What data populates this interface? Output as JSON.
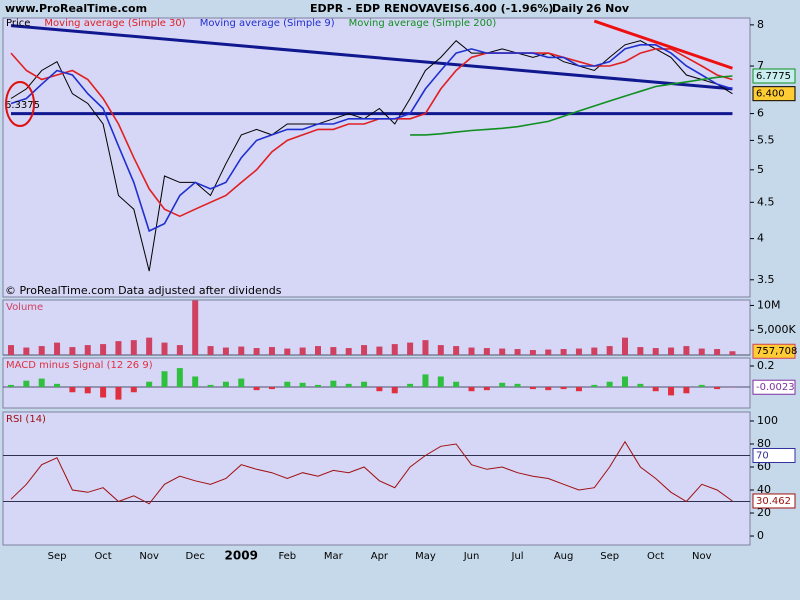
{
  "header": {
    "site": "www.ProRealTime.com",
    "symbol": "EDPR - EDP RENOVAVEIS",
    "quote": "6.400 (-1.96%)",
    "period": "Daily",
    "date": "26 Nov"
  },
  "footnote": "© ProRealTime.com Data adjusted after dividends",
  "chart_data": [
    {
      "type": "line",
      "log": true,
      "ylim": [
        3.31,
        8.18
      ],
      "yticks": [
        3.5,
        4,
        4.5,
        5,
        5.5,
        6,
        7,
        8
      ],
      "series": [
        {
          "name": "Price",
          "color": "#000000",
          "values": [
            6.3,
            6.5,
            6.9,
            7.1,
            6.4,
            6.2,
            5.8,
            4.6,
            4.4,
            3.6,
            4.9,
            4.8,
            4.8,
            4.6,
            5.1,
            5.6,
            5.7,
            5.6,
            5.8,
            5.8,
            5.8,
            5.9,
            6.0,
            5.9,
            6.1,
            5.8,
            6.3,
            6.9,
            7.2,
            7.6,
            7.3,
            7.3,
            7.4,
            7.3,
            7.2,
            7.3,
            7.1,
            7.0,
            6.9,
            7.2,
            7.5,
            7.6,
            7.4,
            7.2,
            6.8,
            6.7,
            6.6,
            6.4
          ],
          "value_labels": [
            null,
            null,
            null,
            null,
            null,
            null,
            null,
            null,
            null,
            null,
            null,
            null,
            null,
            null,
            null,
            null,
            null,
            null,
            null,
            null,
            null,
            null,
            null,
            null,
            null,
            null,
            null,
            null,
            null,
            null,
            null,
            null,
            null,
            null,
            null,
            null,
            null,
            null,
            null,
            null,
            null,
            null,
            null,
            null,
            null,
            null,
            null,
            "6.400"
          ],
          "box_fill": "#ffcc33"
        },
        {
          "name": "Moving average (Simple 30)",
          "color": "#e02020",
          "values": [
            7.3,
            6.9,
            6.7,
            6.8,
            6.9,
            6.7,
            6.3,
            5.8,
            5.2,
            4.7,
            4.4,
            4.3,
            4.4,
            4.5,
            4.6,
            4.8,
            5.0,
            5.3,
            5.5,
            5.6,
            5.7,
            5.7,
            5.8,
            5.8,
            5.9,
            5.9,
            5.9,
            6.0,
            6.5,
            6.9,
            7.2,
            7.3,
            7.3,
            7.3,
            7.3,
            7.3,
            7.2,
            7.1,
            7.0,
            7.0,
            7.1,
            7.3,
            7.4,
            7.4,
            7.2,
            7.0,
            6.8,
            6.7
          ]
        },
        {
          "name": "Moving average (Simple 9)",
          "color": "#2030d0",
          "values": [
            6.2,
            6.3,
            6.6,
            6.9,
            6.8,
            6.4,
            6.1,
            5.4,
            4.8,
            4.1,
            4.2,
            4.6,
            4.8,
            4.7,
            4.8,
            5.2,
            5.5,
            5.6,
            5.7,
            5.7,
            5.8,
            5.8,
            5.9,
            5.9,
            5.9,
            5.9,
            6.0,
            6.5,
            6.9,
            7.3,
            7.4,
            7.3,
            7.3,
            7.3,
            7.3,
            7.2,
            7.2,
            7.0,
            7.0,
            7.1,
            7.4,
            7.5,
            7.5,
            7.3,
            7.0,
            6.8,
            6.6,
            6.5
          ]
        },
        {
          "name": "Moving average (Simple 200)",
          "color": "#109020",
          "label_last": true,
          "box_fill": "#c8eef0",
          "values": [
            null,
            null,
            null,
            null,
            null,
            null,
            null,
            null,
            null,
            null,
            null,
            null,
            null,
            null,
            null,
            null,
            null,
            null,
            null,
            null,
            null,
            null,
            null,
            null,
            null,
            null,
            5.6,
            5.6,
            5.62,
            5.65,
            5.68,
            5.7,
            5.72,
            5.75,
            5.8,
            5.85,
            5.95,
            6.05,
            6.15,
            6.25,
            6.35,
            6.45,
            6.55,
            6.6,
            6.65,
            6.7,
            6.75,
            6.7775
          ]
        }
      ],
      "trendlines": [
        {
          "color": "#101890",
          "from": [
            0,
            7.98
          ],
          "to": [
            47,
            6.5
          ]
        },
        {
          "color": "#101890",
          "from": [
            0,
            6.0
          ],
          "to": [
            47,
            6.0
          ]
        },
        {
          "color": "#ee1010",
          "from": [
            38,
            8.1
          ],
          "to": [
            47,
            6.95
          ]
        }
      ],
      "annotations": [
        "6.3375"
      ]
    },
    {
      "type": "bar",
      "title": "Volume",
      "color": "#d04060",
      "ylim": [
        0,
        11100000
      ],
      "yticks": [
        {
          "value": 5000000,
          "label": "5,000K"
        },
        {
          "value": 10000000,
          "label": "10M"
        }
      ],
      "values": [
        2000000,
        1500000,
        1800000,
        2500000,
        1600000,
        2000000,
        2200000,
        2800000,
        3000000,
        3500000,
        2500000,
        2000000,
        11000000,
        1800000,
        1500000,
        1700000,
        1400000,
        1600000,
        1300000,
        1500000,
        1800000,
        1600000,
        1400000,
        2000000,
        1700000,
        2200000,
        2500000,
        3000000,
        2000000,
        1800000,
        1500000,
        1400000,
        1300000,
        1200000,
        1000000,
        1100000,
        1200000,
        1300000,
        1500000,
        1800000,
        3500000,
        1600000,
        1400000,
        1500000,
        1800000,
        1300000,
        1200000,
        757708
      ],
      "value_labels": [
        null,
        null,
        null,
        null,
        null,
        null,
        null,
        null,
        null,
        null,
        null,
        null,
        null,
        null,
        null,
        null,
        null,
        null,
        null,
        null,
        null,
        null,
        null,
        null,
        null,
        null,
        null,
        null,
        null,
        null,
        null,
        null,
        null,
        null,
        null,
        null,
        null,
        null,
        null,
        null,
        null,
        null,
        null,
        null,
        null,
        null,
        null,
        "757,708"
      ],
      "box_fill": "#ffcc33"
    },
    {
      "type": "bar",
      "title": "MACD minus Signal (12 26 9)",
      "up_color": "#30c040",
      "down_color": "#e03040",
      "label_last": true,
      "ylim": [
        -0.2,
        0.276
      ],
      "yticks": [
        0.2
      ],
      "values": [
        0.02,
        0.06,
        0.08,
        0.03,
        -0.05,
        -0.06,
        -0.1,
        -0.12,
        -0.05,
        0.05,
        0.15,
        0.18,
        0.1,
        0.02,
        0.05,
        0.08,
        -0.03,
        -0.02,
        0.05,
        0.04,
        0.02,
        0.06,
        0.03,
        0.05,
        -0.04,
        -0.06,
        0.03,
        0.12,
        0.1,
        0.05,
        -0.04,
        -0.03,
        0.04,
        0.03,
        -0.02,
        -0.03,
        -0.02,
        -0.04,
        0.02,
        0.05,
        0.1,
        0.03,
        -0.04,
        -0.08,
        -0.06,
        0.02,
        -0.02,
        -0.0023
      ]
    },
    {
      "type": "line",
      "title": "RSI (14)",
      "color": "#a01010",
      "label_last": true,
      "ylim": [
        -7.8,
        107.8
      ],
      "yticks": [
        0,
        20,
        40,
        60,
        80,
        100
      ],
      "levels": [
        70,
        30
      ],
      "level_label_shown": [
        true,
        false
      ],
      "categories": [
        null,
        null,
        null,
        "Sep",
        null,
        null,
        "Oct",
        null,
        null,
        "Nov",
        null,
        null,
        "Dec",
        null,
        null,
        "2009",
        null,
        null,
        "Feb",
        null,
        null,
        "Mar",
        null,
        null,
        "Apr",
        null,
        null,
        "May",
        null,
        null,
        "Jun",
        null,
        null,
        "Jul",
        null,
        null,
        "Aug",
        null,
        null,
        "Sep",
        null,
        null,
        "Oct",
        null,
        null,
        "Nov",
        null,
        null
      ],
      "values": [
        32,
        45,
        62,
        68,
        40,
        38,
        42,
        30,
        35,
        28,
        45,
        52,
        48,
        45,
        50,
        62,
        58,
        55,
        50,
        55,
        52,
        57,
        55,
        60,
        48,
        42,
        60,
        70,
        78,
        80,
        62,
        58,
        60,
        55,
        52,
        50,
        45,
        40,
        42,
        60,
        82,
        60,
        50,
        38,
        30,
        45,
        40,
        30.462
      ]
    }
  ]
}
